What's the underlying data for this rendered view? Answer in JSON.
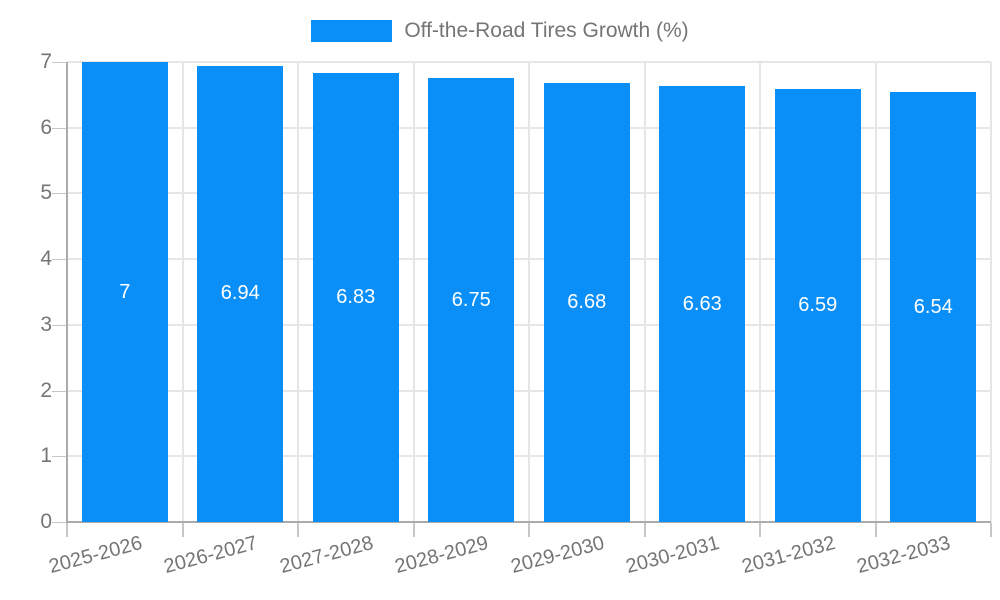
{
  "legend": {
    "label": "Off-the-Road Tires Growth (%)"
  },
  "chart_data": {
    "type": "bar",
    "title": "Off-the-Road Tires Growth (%)",
    "categories": [
      "2025-2026",
      "2026-2027",
      "2027-2028",
      "2028-2029",
      "2029-2030",
      "2030-2031",
      "2031-2032",
      "2032-2033"
    ],
    "values": [
      7,
      6.94,
      6.83,
      6.75,
      6.68,
      6.63,
      6.59,
      6.54
    ],
    "bar_labels": [
      "7",
      "6.94",
      "6.83",
      "6.75",
      "6.68",
      "6.63",
      "6.59",
      "6.54"
    ],
    "xlabel": "",
    "ylabel": "",
    "ylim": [
      0,
      7
    ],
    "yticks": [
      0,
      1,
      2,
      3,
      4,
      5,
      6,
      7
    ],
    "grid": true,
    "legend_position": "top-center",
    "value_labels_position": "inside-center",
    "colors": {
      "bar": "#0A8FF9",
      "grid": "#E6E6E6",
      "axis": "#ABABAB",
      "tick": "#C7C7C7",
      "axis_text": "#757575",
      "bar_label_text": "#FFFFFF",
      "legend_text": "#757575",
      "background": "#FFFFFF"
    }
  }
}
